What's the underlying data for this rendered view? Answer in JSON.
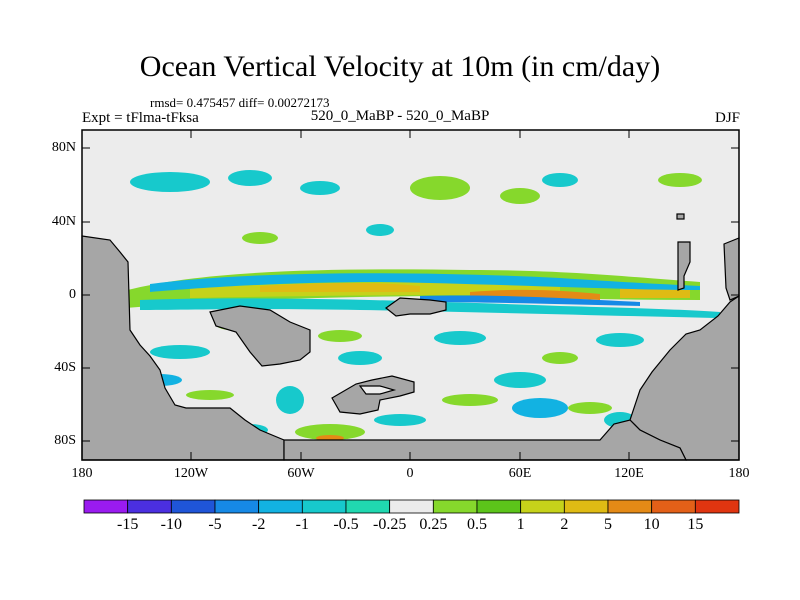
{
  "title": "Ocean Vertical Velocity at 10m (in cm/day)",
  "stats": "rmsd= 0.475457 diff= 0.00272173",
  "experiment": "Expt = tFlma-tFksa",
  "subtitle": "520_0_MaBP - 520_0_MaBP",
  "season": "DJF",
  "y_ticks": [
    "80N",
    "40N",
    "0",
    "40S",
    "80S"
  ],
  "x_ticks": [
    "180",
    "120W",
    "60W",
    "0",
    "60E",
    "120E",
    "180"
  ],
  "colorbar": {
    "labels": [
      "-15",
      "-10",
      "-5",
      "-2",
      "-1",
      "-0.5",
      "-0.25",
      "0.25",
      "0.5",
      "1",
      "2",
      "5",
      "10",
      "15"
    ],
    "colors": [
      "#9a1bf0",
      "#4b2fe0",
      "#1f55d8",
      "#1689e6",
      "#12b2e2",
      "#17c9cc",
      "#20d8b0",
      "#ececec",
      "#86d82c",
      "#5cc41a",
      "#c6d21a",
      "#dfbb14",
      "#e48a16",
      "#e36018",
      "#e03510"
    ]
  },
  "land_color": "#a6a6a6",
  "background_color": "#ececec"
}
